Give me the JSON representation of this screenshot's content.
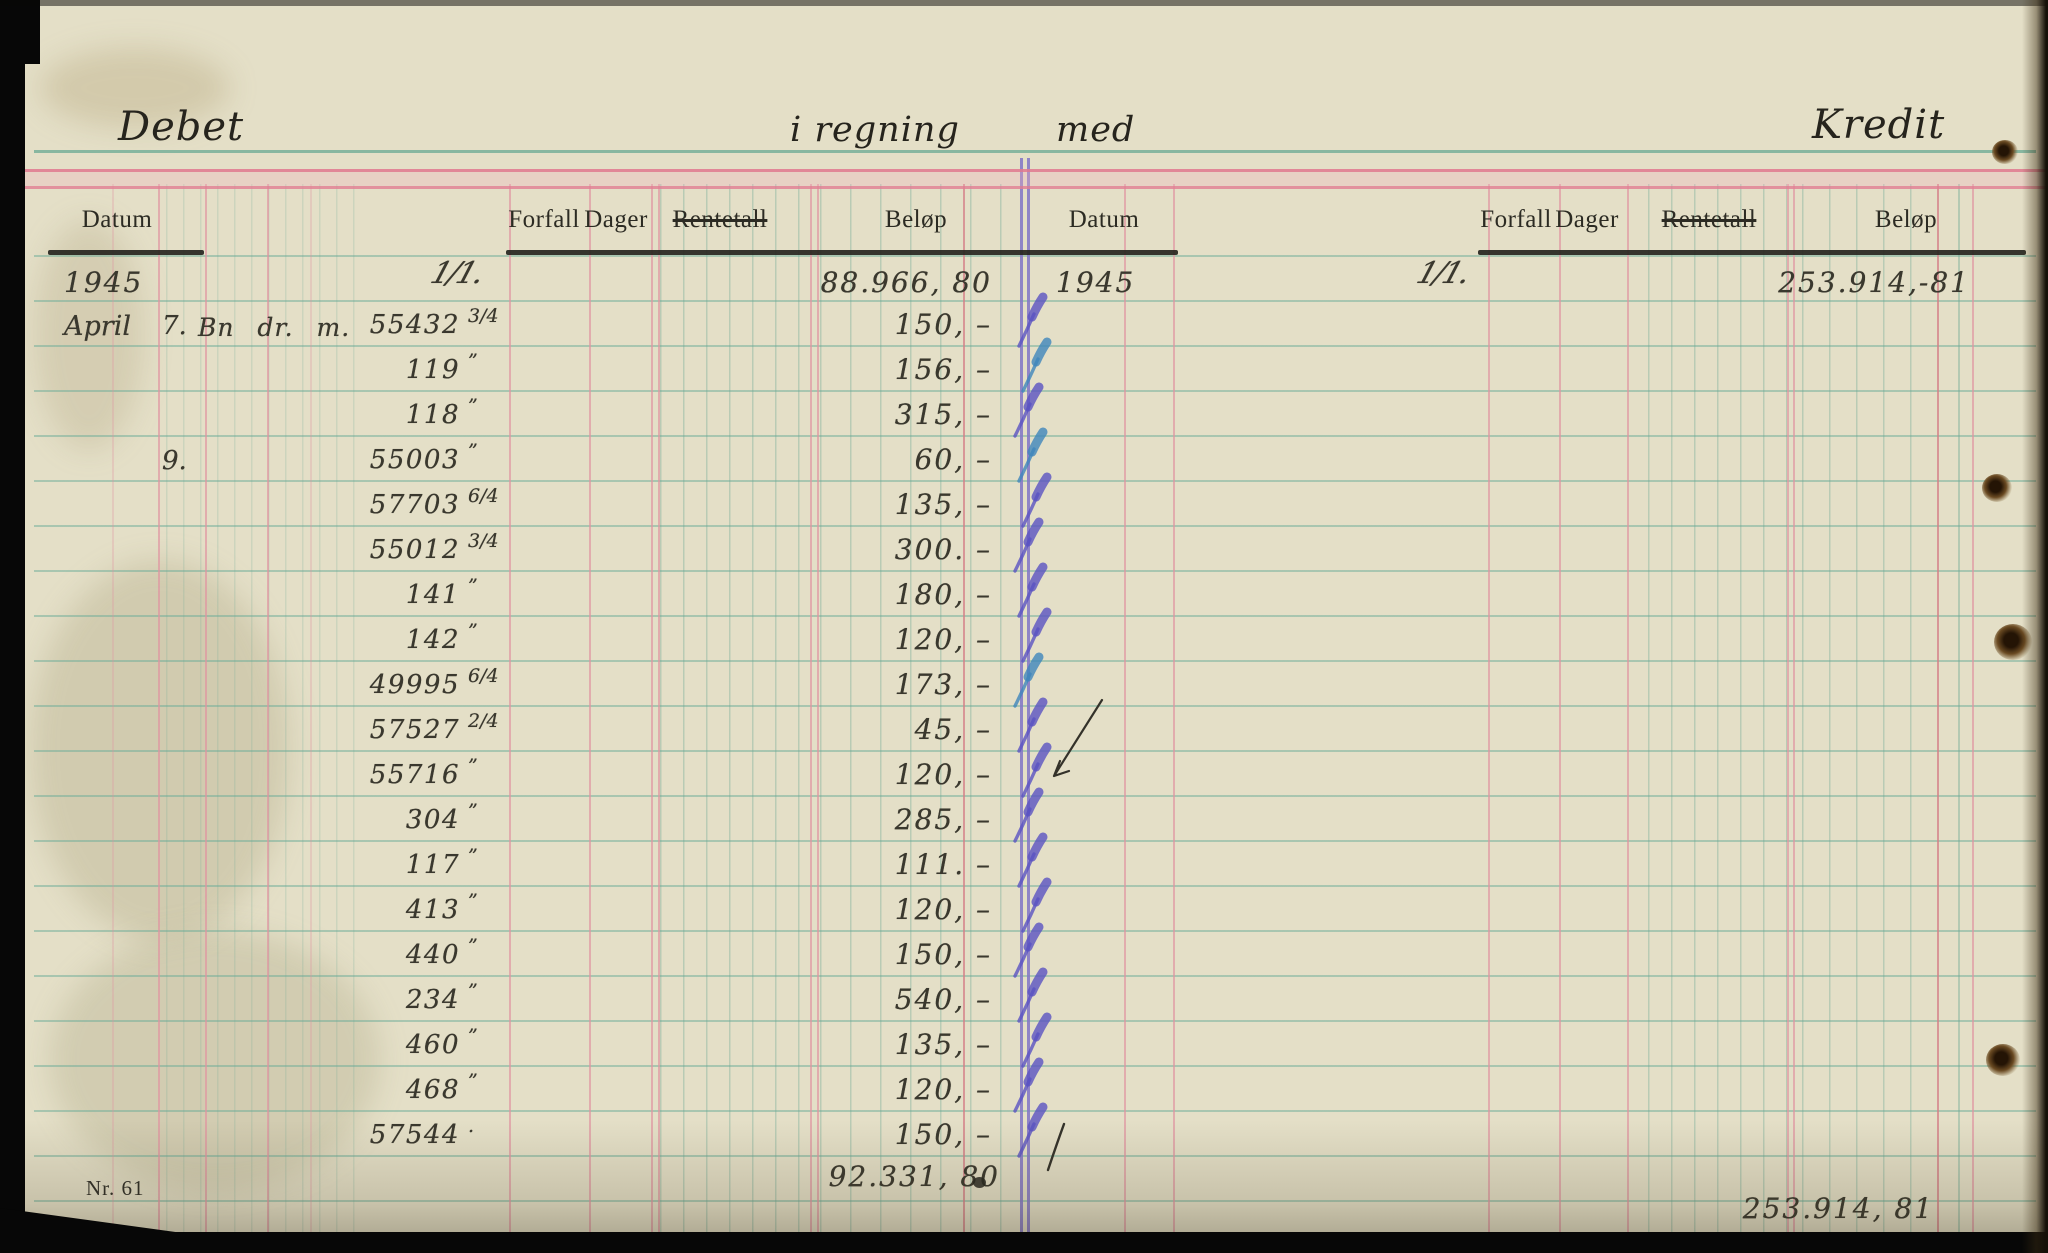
{
  "titles": {
    "debet": "Debet",
    "regning": "i regning",
    "med": "med",
    "kredit": "Kredit"
  },
  "columns_left": {
    "datum": "Datum",
    "forfall": "Forfall",
    "dager": "Dager",
    "rentetall": "Rentetall",
    "belop": "Beløp"
  },
  "columns_right": {
    "datum": "Datum",
    "forfall": "Forfall",
    "dager": "Dager",
    "rentetall": "Rentetall",
    "belop": "Beløp"
  },
  "left_side": {
    "year": "1945",
    "opening_mark": "1/1.",
    "opening_amount": "88.966, 80",
    "entries": [
      {
        "month": "April",
        "day": "7.",
        "desc": "Bn dr. m.",
        "voucher": "55432",
        "frac": "3/4",
        "amount": "150, –",
        "check": "violet"
      },
      {
        "voucher": "119",
        "frac": "”",
        "amount": "156, –",
        "check": "teal"
      },
      {
        "voucher": "118",
        "frac": "”",
        "amount": "315, –",
        "check": "violet"
      },
      {
        "day": "9.",
        "voucher": "55003",
        "frac": "”",
        "amount": "60, –",
        "check": "teal"
      },
      {
        "voucher": "57703",
        "frac": "6/4",
        "amount": "135, –",
        "check": "violet"
      },
      {
        "voucher": "55012",
        "frac": "3/4",
        "amount": "300. –",
        "check": "violet"
      },
      {
        "voucher": "141",
        "frac": "”",
        "amount": "180, –",
        "check": "violet"
      },
      {
        "voucher": "142",
        "frac": "”",
        "amount": "120, –",
        "check": "violet"
      },
      {
        "voucher": "49995",
        "frac": "6/4",
        "amount": "173, –",
        "check": "teal"
      },
      {
        "voucher": "57527",
        "frac": "2/4",
        "amount": "45, –",
        "check": "violet"
      },
      {
        "voucher": "55716",
        "frac": "”",
        "amount": "120, –",
        "check": "violet"
      },
      {
        "voucher": "304",
        "frac": "”",
        "amount": "285, –",
        "check": "violet"
      },
      {
        "voucher": "117",
        "frac": "”",
        "amount": "111. –",
        "check": "violet"
      },
      {
        "voucher": "413",
        "frac": "”",
        "amount": "120, –",
        "check": "violet"
      },
      {
        "voucher": "440",
        "frac": "”",
        "amount": "150, –",
        "check": "violet"
      },
      {
        "voucher": "234",
        "frac": "”",
        "amount": "540, –",
        "check": "violet"
      },
      {
        "voucher": "460",
        "frac": "”",
        "amount": "135, –",
        "check": "violet"
      },
      {
        "voucher": "468",
        "frac": "”",
        "amount": "120, –",
        "check": "violet"
      },
      {
        "voucher": "57544",
        "frac": ".",
        "amount": "150, –",
        "check": "violet"
      }
    ],
    "total": "92.331, 80"
  },
  "right_side": {
    "year": "1945",
    "opening_mark": "1/1.",
    "opening_amount": "253.914,-81",
    "total": "253.914, 81"
  },
  "footer": {
    "page_number": "Nr. 61"
  },
  "colors": {
    "paper": "#e4dfc7",
    "ink": "#3a382e",
    "rule_teal": "#79b09c",
    "rule_pink": "#e19aa6",
    "divider_purple": "#8377c6",
    "band_pink": "#e08296",
    "check_violet": "#5a52c2",
    "check_teal": "#3f86bb",
    "annotation_black": "#34322a"
  }
}
